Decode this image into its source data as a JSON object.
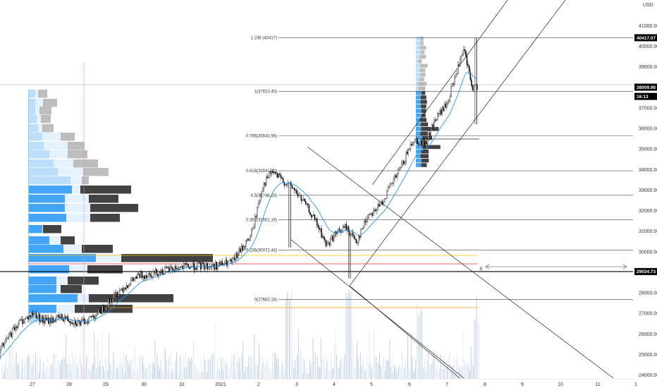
{
  "chart_data": {
    "type": "candlestick",
    "currency": "USD",
    "x_ticks": [
      "27",
      "28",
      "29",
      "30",
      "31",
      "2021",
      "2",
      "3",
      "4",
      "5",
      "6",
      "7",
      "8",
      "9",
      "10",
      "11",
      "1"
    ],
    "y_ticks": [
      "41000.00",
      "40000.00",
      "39000.00",
      "38000.00",
      "37000.00",
      "36000.00",
      "35000.00",
      "34000.00",
      "33000.00",
      "32000.00",
      "31000.00",
      "30000.00",
      "29000.00",
      "28000.00",
      "27000.00",
      "26000.00",
      "25000.00",
      "24000.00"
    ],
    "ylim": [
      23600,
      41800
    ],
    "top_partial_tick": "42000",
    "fib_levels": [
      {
        "label": "1.236 (40417)",
        "price": 40417
      },
      {
        "label": "1(37810.40)",
        "price": 37810
      },
      {
        "label": "0.786(35642.96)",
        "price": 35643
      },
      {
        "label": "0.618(33941.42)",
        "price": 33941
      },
      {
        "label": "0.5(32746.29)",
        "price": 32746
      },
      {
        "label": "0.382(31551.16)",
        "price": 31551
      },
      {
        "label": "0.236(30072.44)",
        "price": 30072
      },
      {
        "label": "0(27682.18)",
        "price": 27682
      }
    ],
    "price_tags": [
      {
        "label": "40417.07",
        "price": 40417
      },
      {
        "label": "38009.90",
        "price": 38010
      },
      {
        "label": "16:13",
        "price": 37560
      },
      {
        "label": "29034.73",
        "price": 29035
      }
    ],
    "annotation": "X",
    "price_series_daily": [
      {
        "day": "Dec 26",
        "price": 24800
      },
      {
        "day": "Dec 27",
        "price": 26500
      },
      {
        "day": "Dec 28",
        "price": 27000
      },
      {
        "day": "Dec 29",
        "price": 26600
      },
      {
        "day": "Dec 30",
        "price": 27400
      },
      {
        "day": "Dec 31",
        "price": 28800
      },
      {
        "day": "Jan 1",
        "price": 29200
      },
      {
        "day": "Jan 2",
        "price": 29600
      },
      {
        "day": "Jan 3",
        "price": 33500
      },
      {
        "day": "Jan 4",
        "price": 32000
      },
      {
        "day": "Jan 5",
        "price": 31500
      },
      {
        "day": "Jan 6",
        "price": 34500
      },
      {
        "day": "Jan 7",
        "price": 37500
      },
      {
        "day": "Jan 8",
        "price": 38010
      }
    ]
  }
}
